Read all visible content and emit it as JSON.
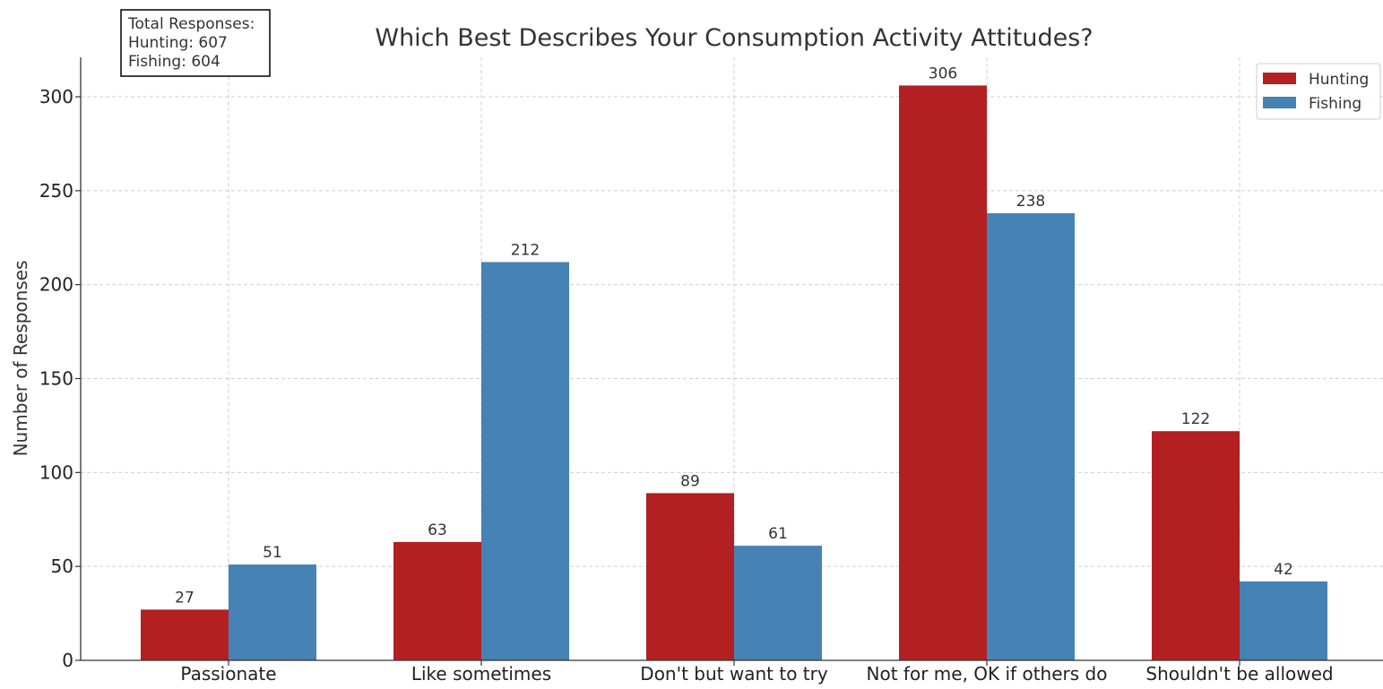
{
  "chart_data": {
    "type": "bar",
    "title": "Which Best Describes Your Consumption Activity Attitudes?",
    "xlabel": "",
    "ylabel": "Number of Responses",
    "categories": [
      "Passionate",
      "Like sometimes",
      "Don't but want to try",
      "Not for me, OK if others do",
      "Shouldn't be allowed"
    ],
    "series": [
      {
        "name": "Hunting",
        "color": "#b22022",
        "values": [
          27,
          63,
          89,
          306,
          122
        ]
      },
      {
        "name": "Fishing",
        "color": "#4682b4",
        "values": [
          51,
          212,
          61,
          238,
          42
        ]
      }
    ],
    "ylim": [
      0,
      320
    ],
    "yticks": [
      0,
      50,
      100,
      150,
      200,
      250,
      300
    ],
    "grid": true,
    "legend_position": "top-right",
    "annotation": {
      "lines": [
        "Total Responses:",
        "Hunting: 607",
        "Fishing: 604"
      ]
    }
  }
}
